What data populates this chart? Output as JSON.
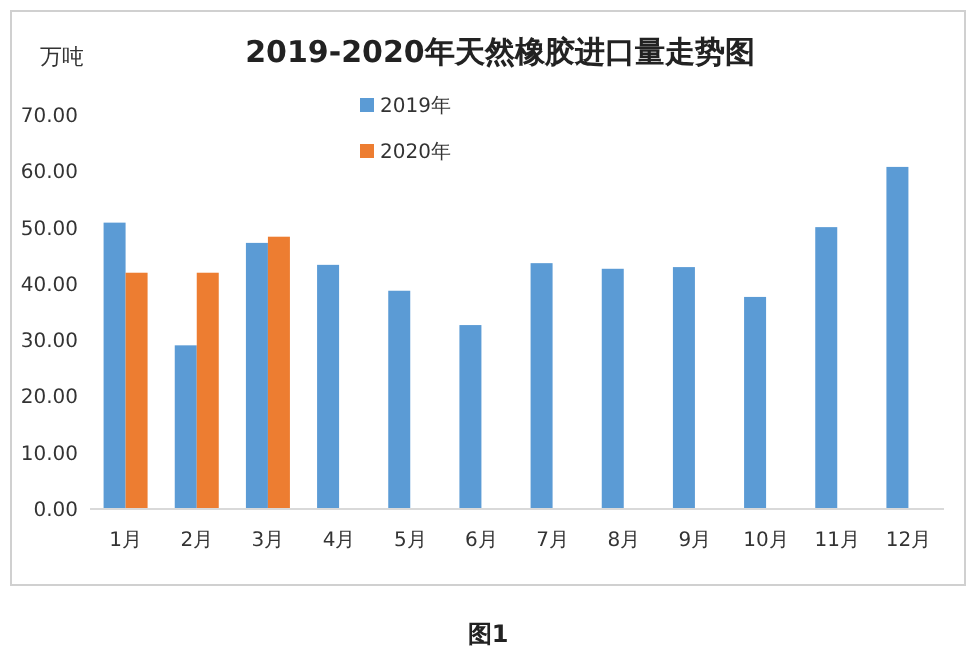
{
  "chart_data": {
    "type": "bar",
    "title": "2019-2020年天然橡胶进口量走势图",
    "ylabel": "万吨",
    "categories": [
      "1月",
      "2月",
      "3月",
      "4月",
      "5月",
      "6月",
      "7月",
      "8月",
      "9月",
      "10月",
      "11月",
      "12月"
    ],
    "series": [
      {
        "name": "2019年",
        "color": "#5b9bd5",
        "values": [
          50.7,
          28.9,
          47.1,
          43.2,
          38.6,
          32.5,
          43.5,
          42.5,
          42.8,
          37.5,
          49.9,
          60.6
        ]
      },
      {
        "name": "2020年",
        "color": "#ed7d31",
        "values": [
          41.8,
          41.8,
          48.2,
          null,
          null,
          null,
          null,
          null,
          null,
          null,
          null,
          null
        ]
      }
    ],
    "ylim": [
      0,
      70
    ],
    "yticks": [
      {
        "value": 0,
        "label": "0.00"
      },
      {
        "value": 10,
        "label": "10.00"
      },
      {
        "value": 20,
        "label": "20.00"
      },
      {
        "value": 30,
        "label": "30.00"
      },
      {
        "value": 40,
        "label": "40.00"
      },
      {
        "value": 50,
        "label": "50.00"
      },
      {
        "value": 60,
        "label": "60.00"
      },
      {
        "value": 70,
        "label": "70.00"
      }
    ],
    "legend": "top left",
    "annotations": [
      "图1"
    ]
  }
}
